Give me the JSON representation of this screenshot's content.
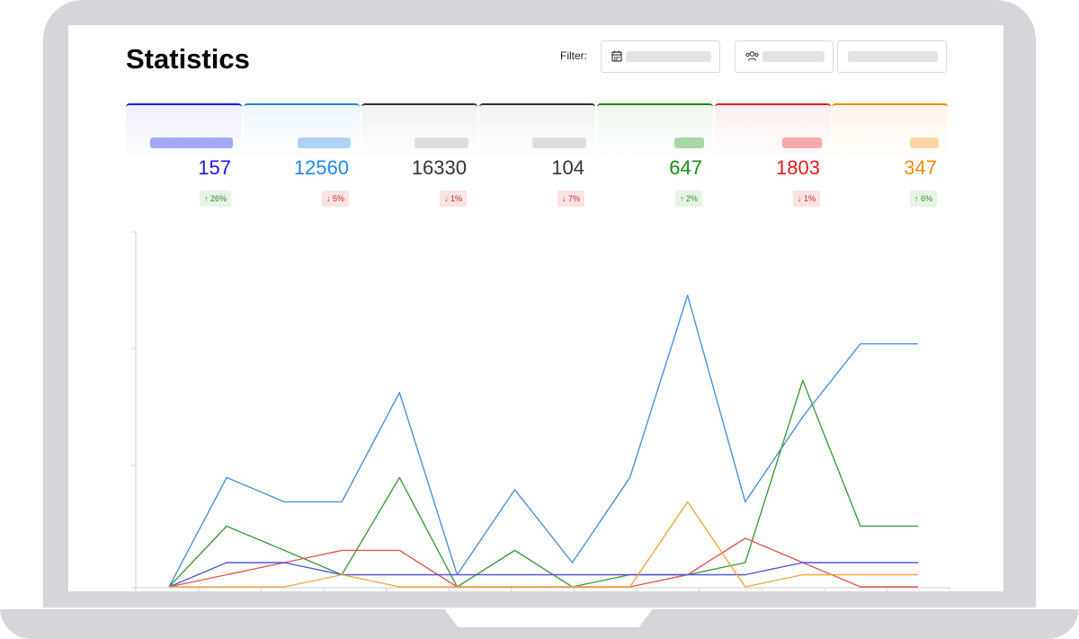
{
  "page": {
    "title": "Statistics"
  },
  "filter": {
    "label": "Filter:",
    "date_icon": "calendar-icon",
    "group_icon": "users-icon"
  },
  "cards": [
    {
      "value": "157",
      "delta": "↑ 26%",
      "trend": "up",
      "color": "#1a1adb",
      "pill": "#a6a6f7",
      "tint": "#eef0ff"
    },
    {
      "value": "12560",
      "delta": "↓ 5%",
      "trend": "down",
      "color": "#1e88e5",
      "pill": "#acd3f7",
      "tint": "#eef6fd"
    },
    {
      "value": "16330",
      "delta": "↓ 1%",
      "trend": "down",
      "color": "#333333",
      "pill": "#dcdde0",
      "tint": "#f1f2f3"
    },
    {
      "value": "104",
      "delta": "↓ 7%",
      "trend": "down",
      "color": "#333333",
      "pill": "#dcdde0",
      "tint": "#f1f2f3"
    },
    {
      "value": "647",
      "delta": "↑ 2%",
      "trend": "up",
      "color": "#1a8a1a",
      "pill": "#a6d8a6",
      "tint": "#eef8ee"
    },
    {
      "value": "1803",
      "delta": "↓ 1%",
      "trend": "down",
      "color": "#e11d1d",
      "pill": "#f8a9a9",
      "tint": "#fdeeee"
    },
    {
      "value": "347",
      "delta": "↑ 6%",
      "trend": "up",
      "color": "#f08a00",
      "pill": "#fdd5a5",
      "tint": "#fef5ea"
    }
  ],
  "chart_data": {
    "type": "line",
    "x": [
      0,
      1,
      2,
      3,
      4,
      5,
      6,
      7,
      8,
      9,
      10,
      11,
      12,
      13
    ],
    "ylim": [
      0,
      27
    ],
    "grid": false,
    "series": [
      {
        "color": "#4a90d9",
        "values": [
          0,
          9,
          7,
          7,
          16,
          1,
          8,
          2,
          9,
          24,
          7,
          14,
          20,
          20
        ]
      },
      {
        "color": "#3e9a3e",
        "values": [
          0,
          5,
          3,
          1,
          9,
          0,
          3,
          0,
          1,
          1,
          2,
          17,
          5,
          5
        ]
      },
      {
        "color": "#e25555",
        "values": [
          0,
          1,
          2,
          3,
          3,
          0,
          0,
          0,
          0,
          1,
          4,
          2,
          0,
          0
        ]
      },
      {
        "color": "#5555d5",
        "values": [
          0,
          2,
          2,
          1,
          1,
          1,
          1,
          1,
          1,
          1,
          1,
          2,
          2,
          2
        ]
      },
      {
        "color": "#f0a840",
        "values": [
          0,
          0,
          0,
          1,
          0,
          0,
          0,
          0,
          0,
          7,
          0,
          1,
          1,
          1
        ]
      }
    ]
  }
}
